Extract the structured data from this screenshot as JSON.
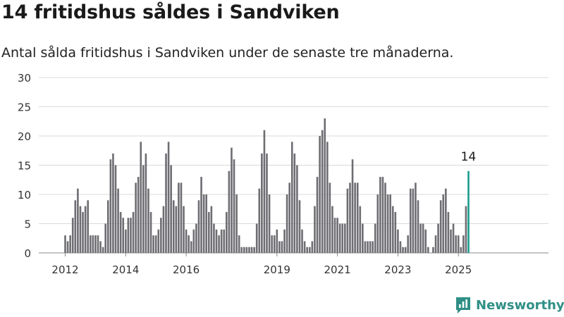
{
  "title": "14 fritidshus såldes i Sandviken",
  "subtitle": "Antal sålda fritidshus i Sandviken under de senaste tre månaderna.",
  "brand": {
    "name": "Newsworthy",
    "logo_icon": "newsworthy-logo-icon"
  },
  "colors": {
    "bar": "#6e6d72",
    "highlight": "#1a9c8f",
    "grid": "#d9d9d9",
    "brand": "#2f8f86"
  },
  "chart_data": {
    "type": "bar",
    "title": "14 fritidshus såldes i Sandviken",
    "xlabel": "",
    "ylabel": "",
    "ylim": [
      0,
      30
    ],
    "yticks": [
      0,
      5,
      10,
      15,
      20,
      25,
      30
    ],
    "xtick_labels": [
      "2012",
      "2014",
      "2016",
      "2019",
      "2021",
      "2023",
      "2025"
    ],
    "grid": true,
    "legend": "none",
    "x_start": "2012-01",
    "frequency": "monthly",
    "values": [
      3,
      2,
      3,
      6,
      9,
      11,
      8,
      7,
      8,
      9,
      3,
      3,
      3,
      3,
      2,
      1,
      5,
      9,
      16,
      17,
      15,
      11,
      7,
      6,
      4,
      6,
      6,
      7,
      12,
      13,
      19,
      15,
      17,
      11,
      7,
      3,
      3,
      4,
      6,
      8,
      17,
      19,
      15,
      9,
      8,
      12,
      12,
      8,
      4,
      3,
      2,
      4,
      5,
      9,
      13,
      10,
      10,
      7,
      8,
      5,
      4,
      3,
      4,
      4,
      7,
      14,
      18,
      16,
      10,
      3,
      1,
      1,
      1,
      1,
      1,
      1,
      5,
      11,
      17,
      21,
      17,
      10,
      3,
      3,
      4,
      2,
      2,
      4,
      10,
      12,
      19,
      17,
      15,
      9,
      4,
      2,
      1,
      1,
      2,
      8,
      13,
      20,
      21,
      23,
      19,
      12,
      8,
      6,
      6,
      5,
      5,
      5,
      11,
      12,
      16,
      12,
      12,
      8,
      5,
      2,
      2,
      2,
      2,
      5,
      10,
      13,
      13,
      12,
      10,
      10,
      8,
      7,
      4,
      2,
      1,
      1,
      3,
      11,
      11,
      12,
      9,
      5,
      5,
      4,
      1,
      0,
      1,
      3,
      5,
      9,
      10,
      11,
      7,
      4,
      5,
      3,
      3,
      1,
      3,
      8,
      14
    ],
    "highlight_last": true,
    "annotations": [
      {
        "label": "14"
      }
    ]
  }
}
